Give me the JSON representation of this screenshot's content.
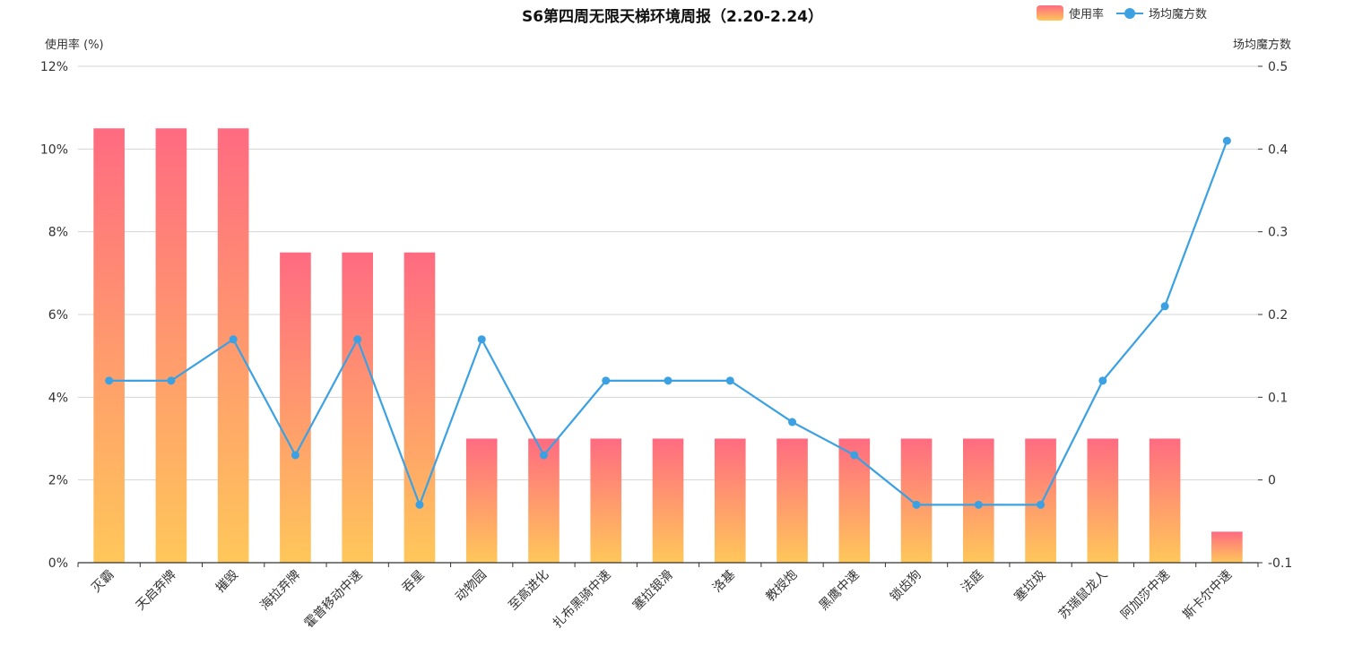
{
  "chart_data": {
    "type": "bar",
    "title": "S6第四周无限天梯环境周报（2.20-2.24）",
    "categories": [
      "灭霸",
      "天启弃牌",
      "摧毁",
      "海拉弃牌",
      "霍普移动中速",
      "吞星",
      "动物园",
      "至高进化",
      "扎布黑骑中速",
      "塞拉银滑",
      "洛基",
      "教授炮",
      "黑鹰中速",
      "锁齿狗",
      "法庭",
      "塞垃圾",
      "苏瑞鼠龙人",
      "阿加莎中速",
      "斯卡尔中速"
    ],
    "ylabel": "使用率 (%)",
    "y2label": "场均魔方数",
    "ylim": [
      0,
      12
    ],
    "y2lim": [
      -0.1,
      0.5
    ],
    "yticks": [
      "0%",
      "2%",
      "4%",
      "6%",
      "8%",
      "10%",
      "12%"
    ],
    "y2ticks": [
      "-0.1",
      "0",
      "0.1",
      "0.2",
      "0.3",
      "0.4",
      "0.5"
    ],
    "grid": true,
    "legend_position": "top-right",
    "series": [
      {
        "name": "使用率",
        "type": "bar",
        "axis": "left",
        "values": [
          10.5,
          10.5,
          10.5,
          7.5,
          7.5,
          7.5,
          3,
          3,
          3,
          3,
          3,
          3,
          3,
          3,
          3,
          3,
          3,
          3,
          0.75
        ],
        "gradient": [
          "#ff6b81",
          "#ffc75a"
        ]
      },
      {
        "name": "场均魔方数",
        "type": "line",
        "axis": "right",
        "values": [
          0.12,
          0.12,
          0.17,
          0.03,
          0.17,
          -0.03,
          0.17,
          0.03,
          0.12,
          0.12,
          0.12,
          0.07,
          0.03,
          -0.03,
          -0.03,
          -0.03,
          0.12,
          0.21,
          0.41
        ],
        "color": "#3ba1e3"
      }
    ]
  }
}
